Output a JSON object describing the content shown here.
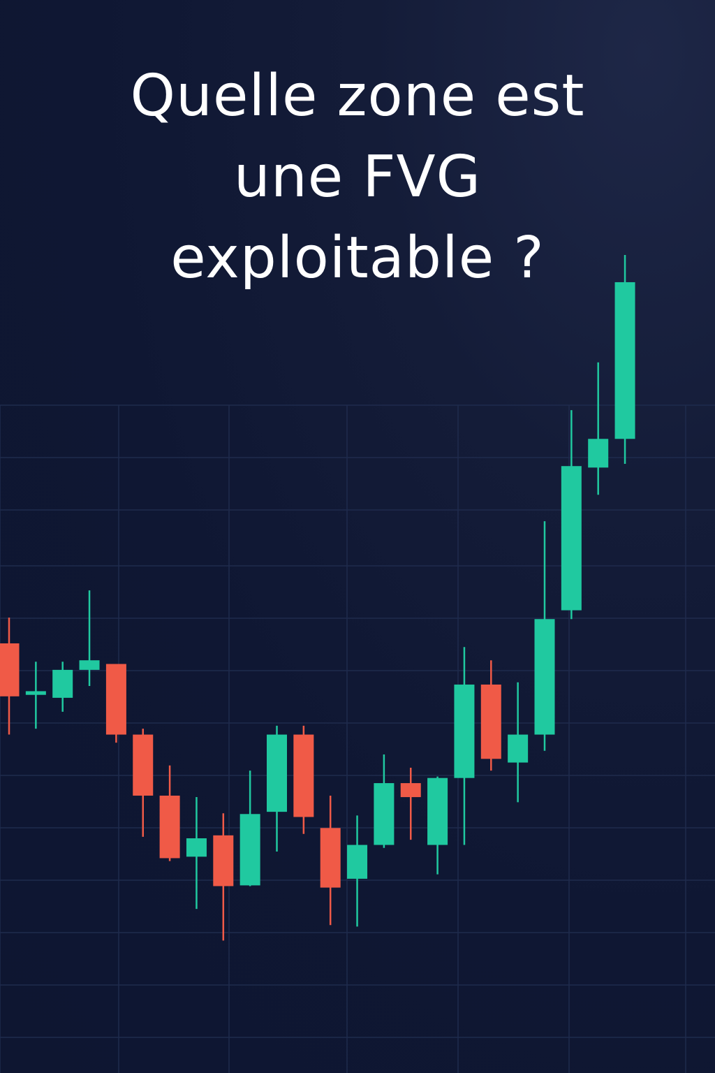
{
  "title": {
    "lines": [
      "Quelle zone est",
      "une FVG",
      "exploitable ?"
    ]
  },
  "colors": {
    "background": "#0f1733",
    "grid": "#1f2b4d",
    "bullish": "#20c9a0",
    "bearish": "#f05a47",
    "title": "#ffffff"
  },
  "chart_data": {
    "type": "candlestick",
    "grid": true,
    "title": "",
    "xlabel": "",
    "ylabel": "",
    "ylim": [
      0,
      100
    ],
    "candles": [
      {
        "open": 47.2,
        "high": 50.7,
        "low": 34.8,
        "close": 40.0,
        "dir": "bear"
      },
      {
        "open": 40.2,
        "high": 44.7,
        "low": 35.6,
        "close": 40.7,
        "dir": "bull"
      },
      {
        "open": 39.8,
        "high": 44.7,
        "low": 37.9,
        "close": 43.6,
        "dir": "bull"
      },
      {
        "open": 43.6,
        "high": 54.4,
        "low": 41.4,
        "close": 44.9,
        "dir": "bull"
      },
      {
        "open": 44.4,
        "high": 44.4,
        "low": 33.7,
        "close": 34.8,
        "dir": "bear"
      },
      {
        "open": 34.8,
        "high": 35.6,
        "low": 20.9,
        "close": 26.5,
        "dir": "bear"
      },
      {
        "open": 26.5,
        "high": 30.6,
        "low": 17.6,
        "close": 18.0,
        "dir": "bear"
      },
      {
        "open": 18.2,
        "high": 26.3,
        "low": 11.1,
        "close": 20.7,
        "dir": "bull"
      },
      {
        "open": 21.1,
        "high": 24.1,
        "low": 6.8,
        "close": 14.2,
        "dir": "bear"
      },
      {
        "open": 14.3,
        "high": 29.9,
        "low": 14.2,
        "close": 24.0,
        "dir": "bull"
      },
      {
        "open": 24.3,
        "high": 36.0,
        "low": 18.9,
        "close": 34.8,
        "dir": "bull"
      },
      {
        "open": 34.8,
        "high": 36.0,
        "low": 21.3,
        "close": 23.6,
        "dir": "bear"
      },
      {
        "open": 22.1,
        "high": 26.5,
        "low": 8.9,
        "close": 14.0,
        "dir": "bear"
      },
      {
        "open": 15.2,
        "high": 23.8,
        "low": 8.7,
        "close": 19.8,
        "dir": "bull"
      },
      {
        "open": 19.8,
        "high": 32.1,
        "low": 19.4,
        "close": 28.2,
        "dir": "bull"
      },
      {
        "open": 28.2,
        "high": 30.3,
        "low": 20.5,
        "close": 26.3,
        "dir": "bear"
      },
      {
        "open": 19.8,
        "high": 29.1,
        "low": 15.8,
        "close": 28.9,
        "dir": "bull"
      },
      {
        "open": 28.9,
        "high": 46.7,
        "low": 19.8,
        "close": 41.6,
        "dir": "bull"
      },
      {
        "open": 41.6,
        "high": 44.9,
        "low": 29.9,
        "close": 31.5,
        "dir": "bear"
      },
      {
        "open": 31.0,
        "high": 41.9,
        "low": 25.6,
        "close": 34.8,
        "dir": "bull"
      },
      {
        "open": 34.8,
        "high": 63.8,
        "low": 32.6,
        "close": 50.5,
        "dir": "bull"
      },
      {
        "open": 51.7,
        "high": 78.9,
        "low": 50.5,
        "close": 71.3,
        "dir": "bull"
      },
      {
        "open": 71.1,
        "high": 85.4,
        "low": 67.4,
        "close": 75.0,
        "dir": "bull"
      },
      {
        "open": 75.0,
        "high": 100.0,
        "low": 71.6,
        "close": 96.3,
        "dir": "bull"
      }
    ]
  }
}
